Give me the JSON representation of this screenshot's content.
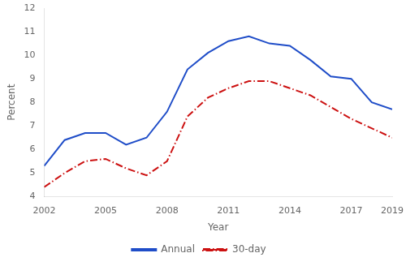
{
  "chart_data": {
    "type": "line",
    "xlabel": "Year",
    "ylabel": "Percent",
    "series": [
      {
        "name": "Annual",
        "color": "#1f4dc8",
        "line_style": "solid",
        "x": [
          2002,
          2003,
          2004,
          2005,
          2006,
          2007,
          2008,
          2009,
          2010,
          2011,
          2012,
          2013,
          2014,
          2015,
          2016,
          2017,
          2018,
          2019
        ],
        "values": [
          5.3,
          6.4,
          6.7,
          6.7,
          6.2,
          6.5,
          7.6,
          9.4,
          10.1,
          10.6,
          10.8,
          10.5,
          10.4,
          9.8,
          9.1,
          9.0,
          8.0,
          7.7
        ]
      },
      {
        "name": "30-day",
        "color": "#cc1111",
        "line_style": "dashdot",
        "x": [
          2002,
          2003,
          2004,
          2005,
          2006,
          2007,
          2008,
          2009,
          2010,
          2011,
          2012,
          2013,
          2014,
          2015,
          2016,
          2017,
          2019
        ],
        "values": [
          4.4,
          5.0,
          5.5,
          5.6,
          5.2,
          4.9,
          5.5,
          7.4,
          8.2,
          8.6,
          8.9,
          8.9,
          8.6,
          8.3,
          7.8,
          7.3,
          6.5
        ]
      }
    ],
    "xlim": [
      2002,
      2019
    ],
    "ylim": [
      4,
      12
    ],
    "xticks": [
      2002,
      2005,
      2008,
      2011,
      2014,
      2017,
      2019
    ],
    "yticks": [
      4,
      5,
      6,
      7,
      8,
      9,
      10,
      11,
      12
    ],
    "grid": false,
    "legend": "bottom"
  }
}
